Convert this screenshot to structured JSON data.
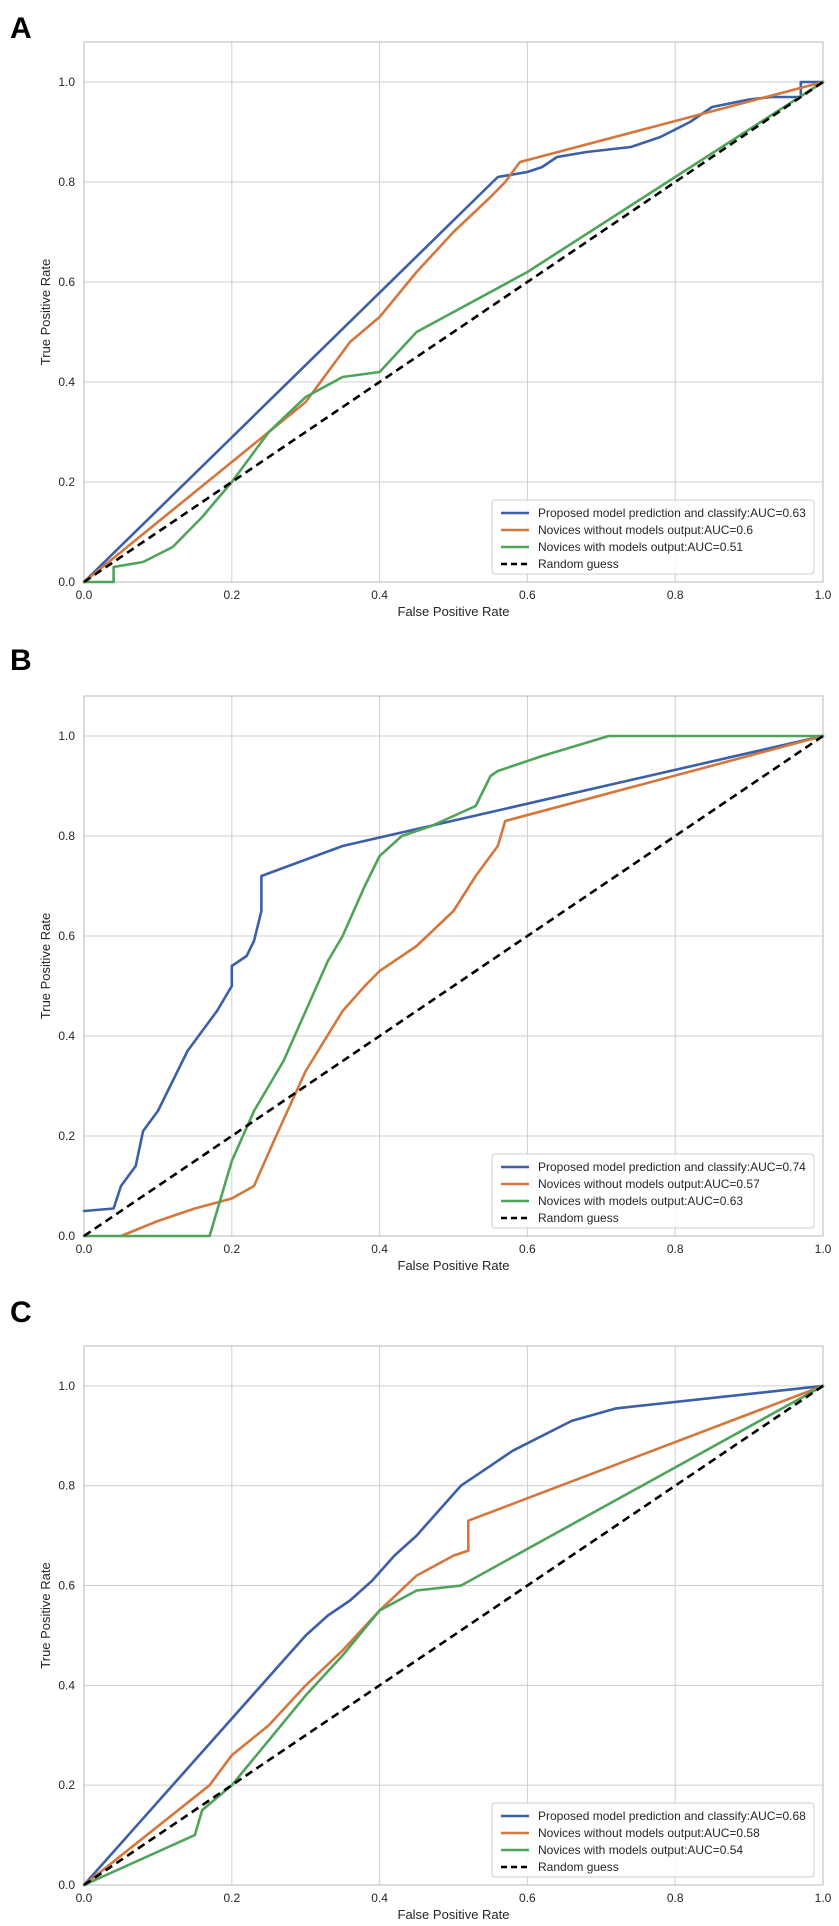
{
  "figure": {
    "background": "#ffffff",
    "grid_color": "#cfcfcf",
    "frame_color": "#b8b8b8"
  },
  "chart_data": [
    {
      "panel": "A",
      "type": "line",
      "xlabel": "False Positive Rate",
      "ylabel": "True Positive Rate",
      "xlim": [
        0,
        1
      ],
      "ylim": [
        0,
        1.08
      ],
      "xticks": [
        "0.0",
        "0.2",
        "0.4",
        "0.6",
        "0.8",
        "1.0"
      ],
      "yticks": [
        "0.0",
        "0.2",
        "0.4",
        "0.6",
        "0.8",
        "1.0"
      ],
      "grid": true,
      "legend_position": "lower-right",
      "series": [
        {
          "name": "Proposed model prediction and classify:AUC=0.63",
          "color": "#3b5fa8",
          "x": [
            0,
            0.56,
            0.6,
            0.62,
            0.64,
            0.68,
            0.74,
            0.78,
            0.82,
            0.85,
            0.9,
            0.93,
            0.97,
            0.97,
            1.0,
            1.0
          ],
          "y": [
            0,
            0.81,
            0.82,
            0.83,
            0.85,
            0.86,
            0.87,
            0.89,
            0.92,
            0.95,
            0.965,
            0.97,
            0.97,
            1.0,
            1.0,
            1.0
          ]
        },
        {
          "name": "Novices without models output:AUC=0.6",
          "color": "#d4773e",
          "x": [
            0,
            0.1,
            0.2,
            0.25,
            0.3,
            0.33,
            0.36,
            0.4,
            0.45,
            0.5,
            0.55,
            0.57,
            0.59,
            1.0
          ],
          "y": [
            0,
            0.12,
            0.24,
            0.3,
            0.36,
            0.42,
            0.48,
            0.53,
            0.62,
            0.7,
            0.77,
            0.8,
            0.84,
            1.0
          ]
        },
        {
          "name": "Novices with models output:AUC=0.51",
          "color": "#4fa45a",
          "x": [
            0,
            0.04,
            0.04,
            0.08,
            0.12,
            0.16,
            0.2,
            0.25,
            0.3,
            0.35,
            0.4,
            0.45,
            0.6,
            0.8,
            1.0
          ],
          "y": [
            0,
            0,
            0.03,
            0.04,
            0.07,
            0.13,
            0.2,
            0.3,
            0.37,
            0.41,
            0.42,
            0.5,
            0.62,
            0.81,
            1.0
          ]
        },
        {
          "name": "Random guess",
          "color": "#000000",
          "dashed": true,
          "x": [
            0,
            1
          ],
          "y": [
            0,
            1
          ]
        }
      ]
    },
    {
      "panel": "B",
      "type": "line",
      "xlabel": "False Positive Rate",
      "ylabel": "True Positive Rate",
      "xlim": [
        0,
        1
      ],
      "ylim": [
        0,
        1.08
      ],
      "xticks": [
        "0.0",
        "0.2",
        "0.4",
        "0.6",
        "0.8",
        "1.0"
      ],
      "yticks": [
        "0.0",
        "0.2",
        "0.4",
        "0.6",
        "0.8",
        "1.0"
      ],
      "grid": true,
      "legend_position": "lower-right",
      "series": [
        {
          "name": "Proposed model prediction and classify:AUC=0.74",
          "color": "#3b5fa8",
          "x": [
            0,
            0.04,
            0.05,
            0.07,
            0.08,
            0.1,
            0.12,
            0.14,
            0.16,
            0.18,
            0.2,
            0.2,
            0.22,
            0.23,
            0.24,
            0.24,
            0.35,
            1.0
          ],
          "y": [
            0.05,
            0.055,
            0.1,
            0.14,
            0.21,
            0.25,
            0.31,
            0.37,
            0.41,
            0.45,
            0.5,
            0.54,
            0.56,
            0.59,
            0.65,
            0.72,
            0.78,
            1.0
          ]
        },
        {
          "name": "Novices without models output:AUC=0.57",
          "color": "#d4773e",
          "x": [
            0.05,
            0.1,
            0.15,
            0.2,
            0.23,
            0.26,
            0.3,
            0.35,
            0.38,
            0.4,
            0.45,
            0.5,
            0.53,
            0.56,
            0.57,
            1.0
          ],
          "y": [
            0,
            0.03,
            0.055,
            0.075,
            0.1,
            0.2,
            0.33,
            0.45,
            0.5,
            0.53,
            0.58,
            0.65,
            0.72,
            0.78,
            0.83,
            1.0
          ]
        },
        {
          "name": "Novices with models output:AUC=0.63",
          "color": "#4fa45a",
          "x": [
            0,
            0.17,
            0.2,
            0.23,
            0.27,
            0.3,
            0.33,
            0.35,
            0.38,
            0.4,
            0.43,
            0.47,
            0.5,
            0.53,
            0.55,
            0.56,
            0.58,
            0.62,
            0.71,
            1.0
          ],
          "y": [
            0,
            0,
            0.15,
            0.25,
            0.35,
            0.45,
            0.55,
            0.6,
            0.7,
            0.76,
            0.8,
            0.82,
            0.84,
            0.86,
            0.92,
            0.93,
            0.94,
            0.96,
            1.0,
            1.0
          ]
        },
        {
          "name": "Random guess",
          "color": "#000000",
          "dashed": true,
          "x": [
            0,
            1
          ],
          "y": [
            0,
            1
          ]
        }
      ]
    },
    {
      "panel": "C",
      "type": "line",
      "xlabel": "False Positive Rate",
      "ylabel": "True Positive Rate",
      "xlim": [
        0,
        1
      ],
      "ylim": [
        0,
        1.08
      ],
      "xticks": [
        "0.0",
        "0.2",
        "0.4",
        "0.6",
        "0.8",
        "1.0"
      ],
      "yticks": [
        "0.0",
        "0.2",
        "0.4",
        "0.6",
        "0.8",
        "1.0"
      ],
      "grid": true,
      "legend_position": "lower-right",
      "series": [
        {
          "name": "Proposed model prediction and classify:AUC=0.68",
          "color": "#3b5fa8",
          "x": [
            0,
            0.27,
            0.3,
            0.33,
            0.36,
            0.39,
            0.42,
            0.45,
            0.48,
            0.51,
            0.55,
            0.58,
            0.62,
            0.66,
            0.72,
            1.0
          ],
          "y": [
            0,
            0.45,
            0.5,
            0.54,
            0.57,
            0.61,
            0.66,
            0.7,
            0.75,
            0.8,
            0.84,
            0.87,
            0.9,
            0.93,
            0.955,
            1.0
          ]
        },
        {
          "name": "Novices without models output:AUC=0.58",
          "color": "#d4773e",
          "x": [
            0,
            0.17,
            0.2,
            0.25,
            0.3,
            0.35,
            0.4,
            0.45,
            0.5,
            0.52,
            0.52,
            1.0
          ],
          "y": [
            0,
            0.2,
            0.26,
            0.32,
            0.4,
            0.47,
            0.55,
            0.62,
            0.66,
            0.67,
            0.73,
            1.0
          ]
        },
        {
          "name": "Novices with models output:AUC=0.54",
          "color": "#4fa45a",
          "x": [
            0,
            0.15,
            0.16,
            0.2,
            0.25,
            0.3,
            0.35,
            0.4,
            0.45,
            0.51,
            1.0
          ],
          "y": [
            0,
            0.1,
            0.15,
            0.2,
            0.29,
            0.38,
            0.46,
            0.55,
            0.59,
            0.6,
            1.0
          ]
        },
        {
          "name": "Random guess",
          "color": "#000000",
          "dashed": true,
          "x": [
            0,
            1
          ],
          "y": [
            0,
            1
          ]
        }
      ]
    }
  ]
}
